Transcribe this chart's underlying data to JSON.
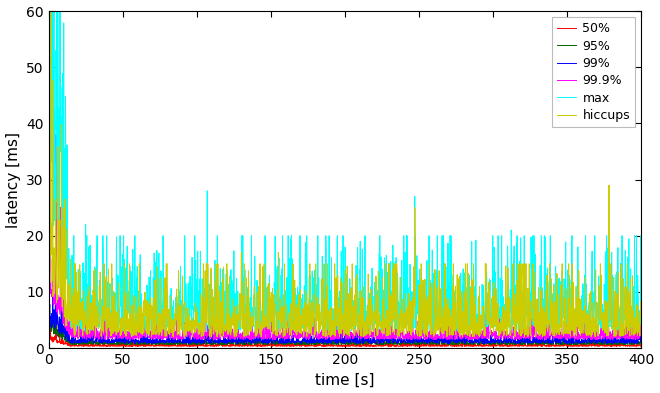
{
  "title": "",
  "xlabel": "time [s]",
  "ylabel": "latency [ms]",
  "xlim": [
    0,
    400
  ],
  "ylim": [
    0,
    60
  ],
  "xticks": [
    0,
    50,
    100,
    150,
    200,
    250,
    300,
    350,
    400
  ],
  "yticks": [
    0,
    10,
    20,
    30,
    40,
    50,
    60
  ],
  "legend_labels": [
    "50%",
    "95%",
    "99%",
    "99.9%",
    "max",
    "hiccups"
  ],
  "colors": {
    "p50": "#ff0000",
    "p95": "#006400",
    "p99": "#0000ff",
    "p999": "#ff00ff",
    "max": "#00ffff",
    "hiccups": "#cccc00"
  },
  "n_points": 2000,
  "duration": 400,
  "seed": 123,
  "background_color": "#ffffff",
  "figsize": [
    6.6,
    3.93
  ],
  "dpi": 100
}
